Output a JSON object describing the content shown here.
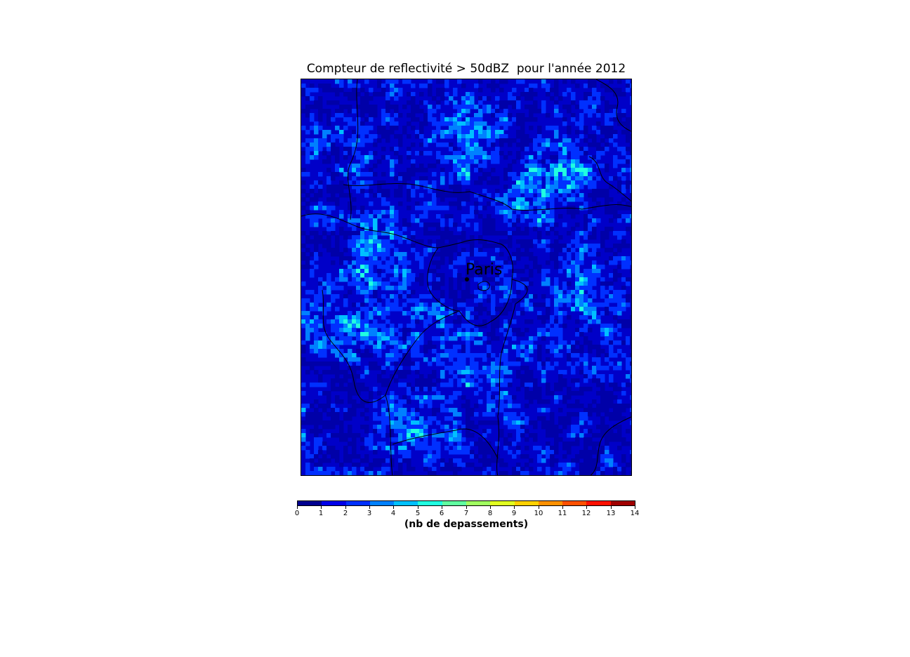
{
  "title": "Compteur de reflectivité > 50dBZ  pour l'année 2012",
  "map": {
    "city_label": "Paris",
    "field": "count of reflectivity > 50 dBZ",
    "dominant_levels": [
      0,
      1,
      2,
      3,
      4,
      5
    ],
    "background_color": "#0000c8",
    "boundary_color": "#000000"
  },
  "colorbar": {
    "label": "(nb de depassements)",
    "min": 0,
    "max": 14,
    "ticks": [
      "0",
      "1",
      "2",
      "3",
      "4",
      "5",
      "6",
      "7",
      "8",
      "9",
      "10",
      "11",
      "12",
      "13",
      "14"
    ],
    "colors": [
      "#00008f",
      "#0000e8",
      "#0030ff",
      "#0080ff",
      "#00c0ff",
      "#20ffe0",
      "#60ffa0",
      "#a0ff60",
      "#e0ff20",
      "#ffd000",
      "#ff9000",
      "#ff5000",
      "#ff1000",
      "#a00000"
    ]
  }
}
